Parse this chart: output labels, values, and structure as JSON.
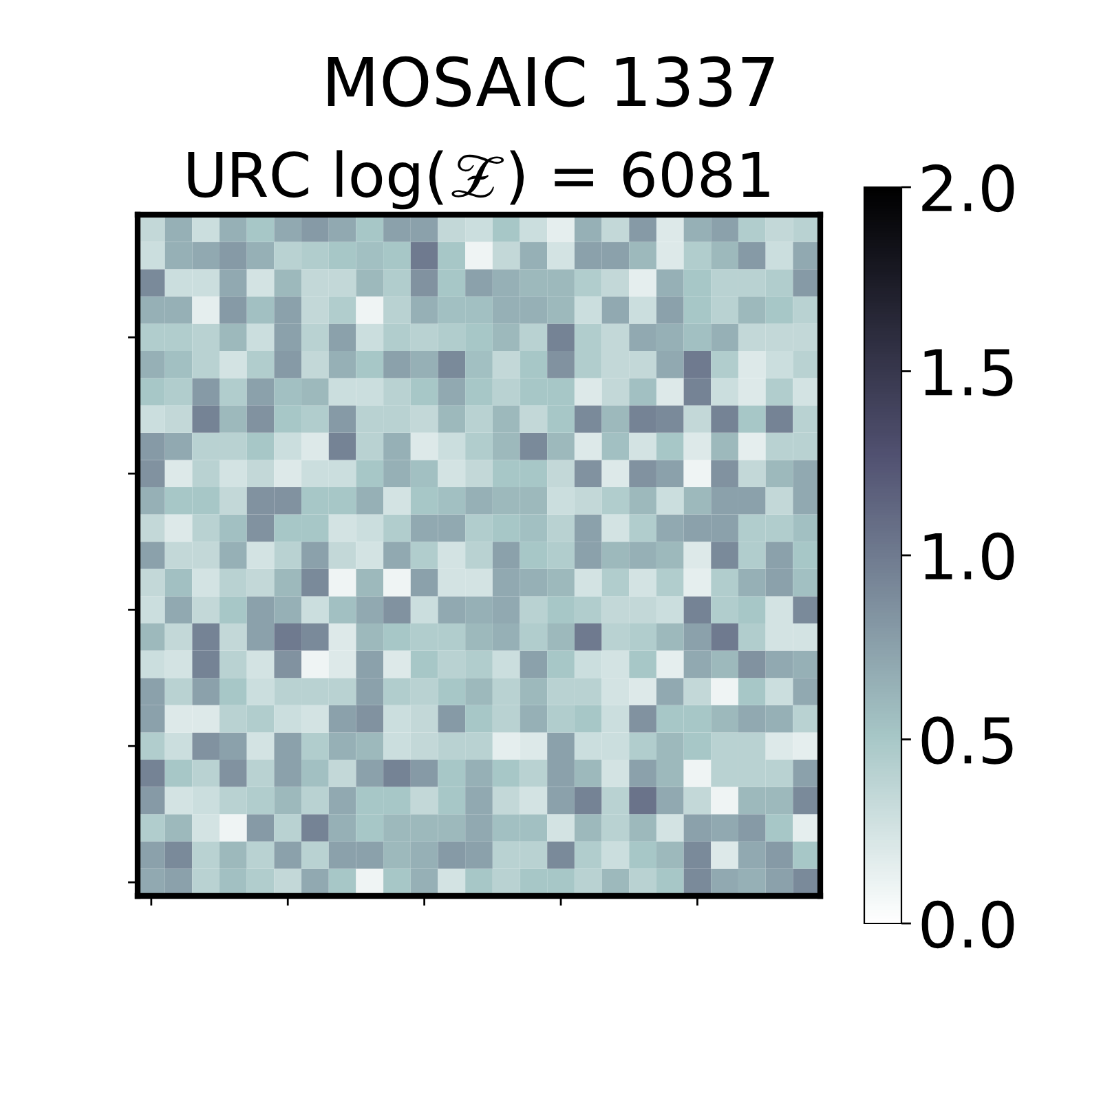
{
  "chart_data": {
    "type": "heatmap",
    "title": "MOSAIC 1337",
    "subtitle": "URC log(𝒵) = 6081",
    "categories": [
      null,
      null,
      null,
      null,
      null,
      null,
      null,
      null,
      null,
      null,
      null,
      null,
      null,
      null,
      null,
      null,
      null,
      null,
      null,
      null,
      null,
      null,
      null,
      null,
      null
    ],
    "y_categories": [
      null,
      null,
      null,
      null,
      null,
      null,
      null,
      null,
      null,
      null,
      null,
      null,
      null,
      null,
      null,
      null,
      null,
      null,
      null,
      null,
      null,
      null,
      null,
      null,
      null
    ],
    "clim": [
      0,
      2
    ],
    "cticks": [
      {
        "value": 0,
        "label": "0.0"
      },
      {
        "value": 0.5,
        "label": "0.5"
      },
      {
        "value": 1,
        "label": "1.0"
      },
      {
        "value": 1.5,
        "label": "1.5"
      },
      {
        "value": 2,
        "label": "2.0"
      }
    ],
    "cells": [
      [
        0.35,
        0.65,
        0.3,
        0.65,
        0.5,
        0.7,
        0.8,
        0.7,
        0.5,
        0.75,
        0.75,
        0.35,
        0.3,
        0.5,
        0.3,
        0.15,
        0.65,
        0.35,
        0.8,
        0.2,
        0.65,
        0.75,
        0.45,
        0.35,
        0.4
      ],
      [
        0.3,
        0.65,
        0.7,
        0.8,
        0.65,
        0.4,
        0.45,
        0.5,
        0.55,
        0.5,
        1.0,
        0.5,
        0.1,
        0.35,
        0.65,
        0.25,
        0.75,
        0.75,
        0.6,
        0.2,
        0.45,
        0.6,
        0.8,
        0.3,
        0.7
      ],
      [
        0.9,
        0.3,
        0.3,
        0.7,
        0.25,
        0.6,
        0.35,
        0.35,
        0.6,
        0.45,
        0.85,
        0.5,
        0.75,
        0.65,
        0.6,
        0.6,
        0.45,
        0.35,
        0.15,
        0.65,
        0.5,
        0.4,
        0.4,
        0.45,
        0.8
      ],
      [
        0.65,
        0.65,
        0.15,
        0.8,
        0.55,
        0.75,
        0.35,
        0.45,
        0.1,
        0.4,
        0.65,
        0.55,
        0.55,
        0.65,
        0.65,
        0.6,
        0.3,
        0.7,
        0.3,
        0.75,
        0.5,
        0.4,
        0.6,
        0.5,
        0.4
      ],
      [
        0.45,
        0.45,
        0.4,
        0.6,
        0.3,
        0.75,
        0.4,
        0.75,
        0.3,
        0.45,
        0.4,
        0.45,
        0.5,
        0.6,
        0.4,
        0.95,
        0.45,
        0.35,
        0.7,
        0.65,
        0.55,
        0.65,
        0.35,
        0.35,
        0.35
      ],
      [
        0.65,
        0.55,
        0.4,
        0.25,
        0.45,
        0.8,
        0.35,
        0.65,
        0.5,
        0.75,
        0.65,
        0.9,
        0.55,
        0.35,
        0.5,
        0.85,
        0.45,
        0.35,
        0.35,
        0.7,
        1.0,
        0.45,
        0.2,
        0.3,
        0.4
      ],
      [
        0.5,
        0.45,
        0.8,
        0.45,
        0.75,
        0.55,
        0.6,
        0.3,
        0.3,
        0.4,
        0.5,
        0.7,
        0.5,
        0.4,
        0.5,
        0.5,
        0.2,
        0.35,
        0.55,
        0.2,
        0.95,
        0.3,
        0.2,
        0.45,
        0.25
      ],
      [
        0.3,
        0.35,
        0.95,
        0.6,
        0.85,
        0.5,
        0.45,
        0.8,
        0.4,
        0.4,
        0.35,
        0.6,
        0.4,
        0.6,
        0.35,
        0.5,
        0.9,
        0.6,
        0.95,
        0.9,
        0.35,
        0.95,
        0.5,
        0.95,
        0.4
      ],
      [
        0.8,
        0.7,
        0.4,
        0.4,
        0.5,
        0.3,
        0.2,
        0.95,
        0.4,
        0.65,
        0.2,
        0.3,
        0.45,
        0.6,
        0.9,
        0.6,
        0.2,
        0.55,
        0.25,
        0.5,
        0.2,
        0.6,
        0.15,
        0.4,
        0.4
      ],
      [
        0.85,
        0.2,
        0.4,
        0.25,
        0.35,
        0.2,
        0.3,
        0.3,
        0.5,
        0.65,
        0.55,
        0.25,
        0.35,
        0.5,
        0.5,
        0.35,
        0.85,
        0.2,
        0.85,
        0.75,
        0.1,
        0.85,
        0.35,
        0.6,
        0.7
      ],
      [
        0.65,
        0.5,
        0.5,
        0.35,
        0.85,
        0.85,
        0.5,
        0.5,
        0.65,
        0.25,
        0.5,
        0.55,
        0.65,
        0.6,
        0.6,
        0.3,
        0.35,
        0.45,
        0.6,
        0.3,
        0.6,
        0.75,
        0.75,
        0.35,
        0.7
      ],
      [
        0.35,
        0.2,
        0.4,
        0.55,
        0.85,
        0.5,
        0.5,
        0.25,
        0.3,
        0.45,
        0.7,
        0.7,
        0.45,
        0.5,
        0.55,
        0.4,
        0.75,
        0.25,
        0.45,
        0.7,
        0.75,
        0.75,
        0.45,
        0.45,
        0.55
      ],
      [
        0.75,
        0.35,
        0.35,
        0.65,
        0.25,
        0.4,
        0.75,
        0.35,
        0.25,
        0.7,
        0.45,
        0.25,
        0.4,
        0.75,
        0.5,
        0.45,
        0.75,
        0.6,
        0.65,
        0.6,
        0.2,
        0.9,
        0.45,
        0.75,
        0.5
      ],
      [
        0.35,
        0.55,
        0.25,
        0.4,
        0.35,
        0.6,
        0.9,
        0.1,
        0.6,
        0.1,
        0.75,
        0.25,
        0.25,
        0.7,
        0.65,
        0.6,
        0.25,
        0.45,
        0.25,
        0.45,
        0.15,
        0.45,
        0.65,
        0.75,
        0.55
      ],
      [
        0.3,
        0.7,
        0.35,
        0.5,
        0.75,
        0.65,
        0.3,
        0.55,
        0.7,
        0.85,
        0.3,
        0.7,
        0.65,
        0.7,
        0.4,
        0.5,
        0.45,
        0.35,
        0.35,
        0.3,
        0.95,
        0.45,
        0.5,
        0.25,
        0.9
      ],
      [
        0.6,
        0.35,
        0.95,
        0.35,
        0.75,
        1.0,
        0.9,
        0.2,
        0.6,
        0.5,
        0.45,
        0.45,
        0.6,
        0.65,
        0.45,
        0.6,
        1.0,
        0.4,
        0.45,
        0.6,
        0.75,
        1.0,
        0.45,
        0.25,
        0.25
      ],
      [
        0.3,
        0.25,
        0.95,
        0.4,
        0.25,
        0.85,
        0.1,
        0.2,
        0.75,
        0.2,
        0.5,
        0.4,
        0.45,
        0.3,
        0.75,
        0.5,
        0.3,
        0.25,
        0.5,
        0.15,
        0.7,
        0.6,
        0.85,
        0.7,
        0.65
      ],
      [
        0.75,
        0.4,
        0.75,
        0.5,
        0.3,
        0.4,
        0.4,
        0.4,
        0.75,
        0.45,
        0.4,
        0.5,
        0.6,
        0.4,
        0.6,
        0.4,
        0.4,
        0.25,
        0.2,
        0.7,
        0.35,
        0.1,
        0.5,
        0.3,
        0.7
      ],
      [
        0.75,
        0.2,
        0.2,
        0.4,
        0.45,
        0.3,
        0.25,
        0.75,
        0.85,
        0.3,
        0.35,
        0.8,
        0.5,
        0.4,
        0.65,
        0.45,
        0.5,
        0.3,
        0.85,
        0.5,
        0.5,
        0.6,
        0.7,
        0.65,
        0.4
      ],
      [
        0.45,
        0.3,
        0.85,
        0.75,
        0.25,
        0.75,
        0.45,
        0.65,
        0.6,
        0.3,
        0.35,
        0.4,
        0.4,
        0.15,
        0.2,
        0.75,
        0.3,
        0.3,
        0.45,
        0.6,
        0.5,
        0.4,
        0.4,
        0.2,
        0.15
      ],
      [
        0.95,
        0.5,
        0.4,
        0.85,
        0.4,
        0.75,
        0.55,
        0.35,
        0.75,
        0.95,
        0.8,
        0.5,
        0.65,
        0.5,
        0.4,
        0.75,
        0.6,
        0.25,
        0.75,
        0.6,
        0.1,
        0.4,
        0.4,
        0.4,
        0.75
      ],
      [
        0.8,
        0.25,
        0.3,
        0.4,
        0.45,
        0.6,
        0.4,
        0.7,
        0.5,
        0.5,
        0.35,
        0.5,
        0.7,
        0.35,
        0.25,
        0.75,
        0.95,
        0.4,
        1.05,
        0.7,
        0.35,
        0.1,
        0.6,
        0.6,
        0.9
      ],
      [
        0.45,
        0.6,
        0.25,
        0.1,
        0.8,
        0.4,
        0.95,
        0.65,
        0.5,
        0.6,
        0.6,
        0.6,
        0.7,
        0.55,
        0.55,
        0.25,
        0.6,
        0.4,
        0.6,
        0.25,
        0.75,
        0.7,
        0.8,
        0.5,
        0.15
      ],
      [
        0.75,
        0.9,
        0.4,
        0.6,
        0.4,
        0.75,
        0.4,
        0.75,
        0.75,
        0.6,
        0.65,
        0.8,
        0.75,
        0.4,
        0.4,
        0.9,
        0.45,
        0.3,
        0.5,
        0.6,
        0.9,
        0.2,
        0.7,
        0.8,
        0.5
      ],
      [
        0.7,
        0.75,
        0.4,
        0.55,
        0.45,
        0.35,
        0.7,
        0.5,
        0.1,
        0.5,
        0.65,
        0.25,
        0.5,
        0.4,
        0.5,
        0.5,
        0.4,
        0.6,
        0.4,
        0.5,
        0.9,
        0.7,
        0.65,
        0.75,
        0.9
      ]
    ]
  }
}
